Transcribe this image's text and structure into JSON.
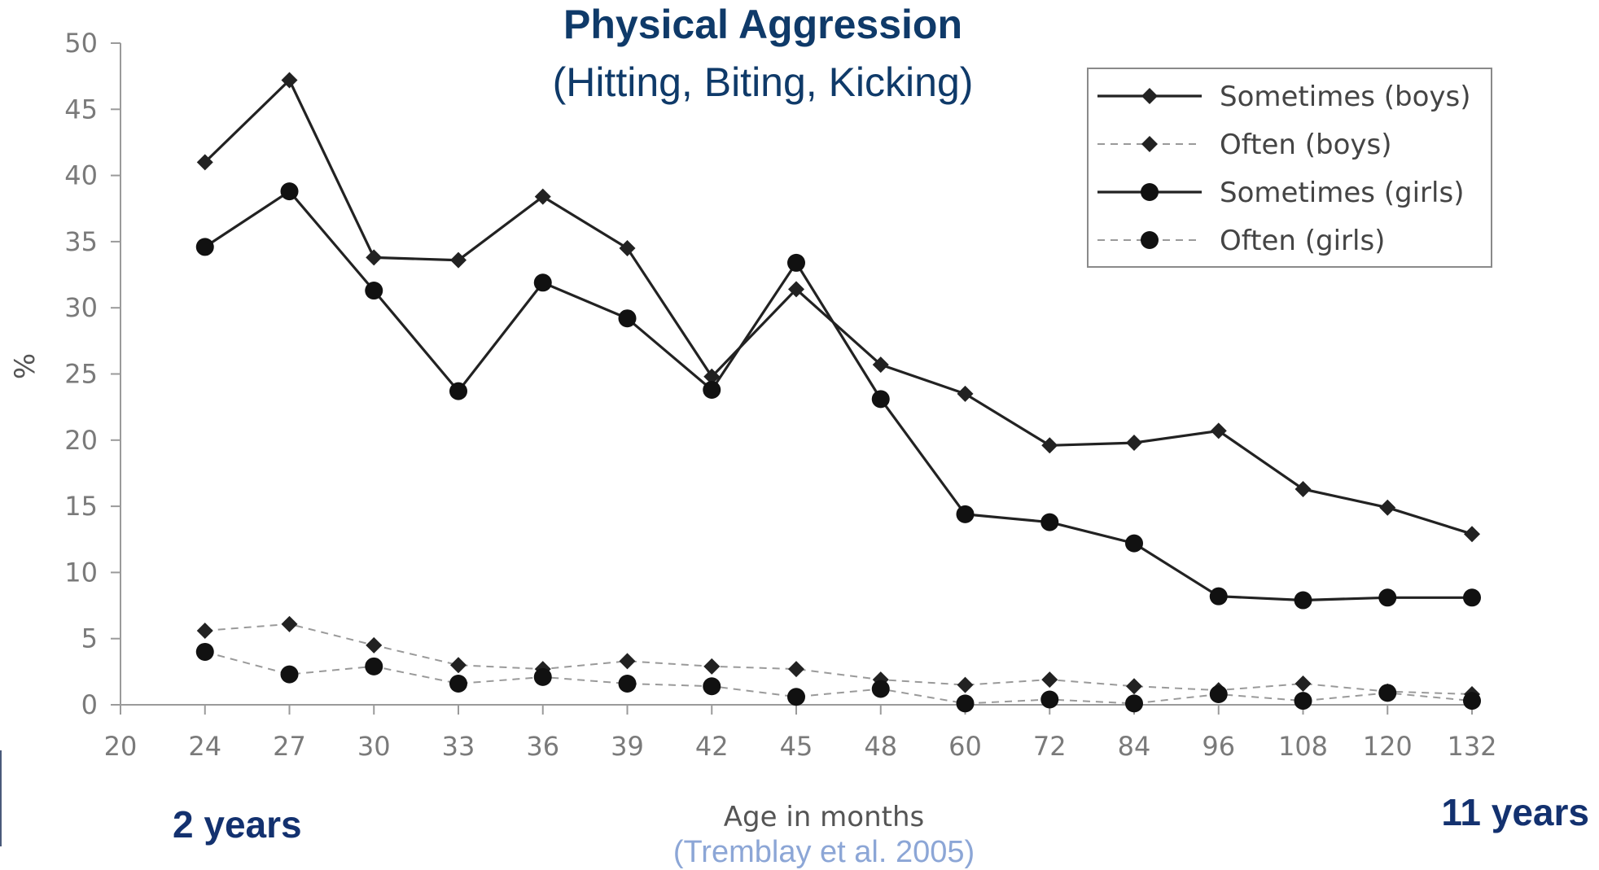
{
  "title": "Physical Aggression",
  "subtitle": "(Hitting, Biting, Kicking)",
  "note_left": "2 years",
  "note_right": "11 years",
  "citation": "(Tremblay et al. 2005)",
  "chart_data": {
    "type": "line",
    "categories": [
      "24",
      "27",
      "30",
      "33",
      "36",
      "39",
      "42",
      "45",
      "48",
      "60",
      "72",
      "84",
      "96",
      "108",
      "120",
      "132"
    ],
    "x_tick_labels": [
      "20",
      "24",
      "27",
      "30",
      "33",
      "36",
      "39",
      "42",
      "45",
      "48",
      "60",
      "72",
      "84",
      "96",
      "108",
      "120",
      "132"
    ],
    "xlabel": "Age in months",
    "ylabel": "%",
    "ylim": [
      0,
      50
    ],
    "y_ticks": [
      0,
      5,
      10,
      15,
      20,
      25,
      30,
      35,
      40,
      45,
      50
    ],
    "grid": false,
    "legend_position": "top-right",
    "series": [
      {
        "name": "Sometimes (boys)",
        "line": "solid",
        "marker": "diamond",
        "color": "#222222",
        "values": [
          41.0,
          47.2,
          33.8,
          33.6,
          38.4,
          34.5,
          24.8,
          31.4,
          25.7,
          23.5,
          19.6,
          19.8,
          20.7,
          16.3,
          14.9,
          12.9
        ]
      },
      {
        "name": "Often (boys)",
        "line": "dashed",
        "marker": "diamond",
        "color": "#222222",
        "values": [
          5.6,
          6.1,
          4.5,
          3.0,
          2.7,
          3.3,
          2.9,
          2.7,
          1.9,
          1.5,
          1.9,
          1.4,
          1.1,
          1.6,
          1.0,
          0.8
        ]
      },
      {
        "name": "Sometimes (girls)",
        "line": "solid",
        "marker": "circle",
        "color": "#111111",
        "values": [
          34.6,
          38.8,
          31.3,
          23.7,
          31.9,
          29.2,
          23.8,
          33.4,
          23.1,
          14.4,
          13.8,
          12.2,
          8.2,
          7.9,
          8.1,
          8.1
        ]
      },
      {
        "name": "Often (girls)",
        "line": "dashed",
        "marker": "circle",
        "color": "#111111",
        "values": [
          4.0,
          2.3,
          2.9,
          1.6,
          2.1,
          1.6,
          1.4,
          0.6,
          1.2,
          0.1,
          0.4,
          0.1,
          0.8,
          0.3,
          0.9,
          0.3
        ]
      }
    ]
  }
}
